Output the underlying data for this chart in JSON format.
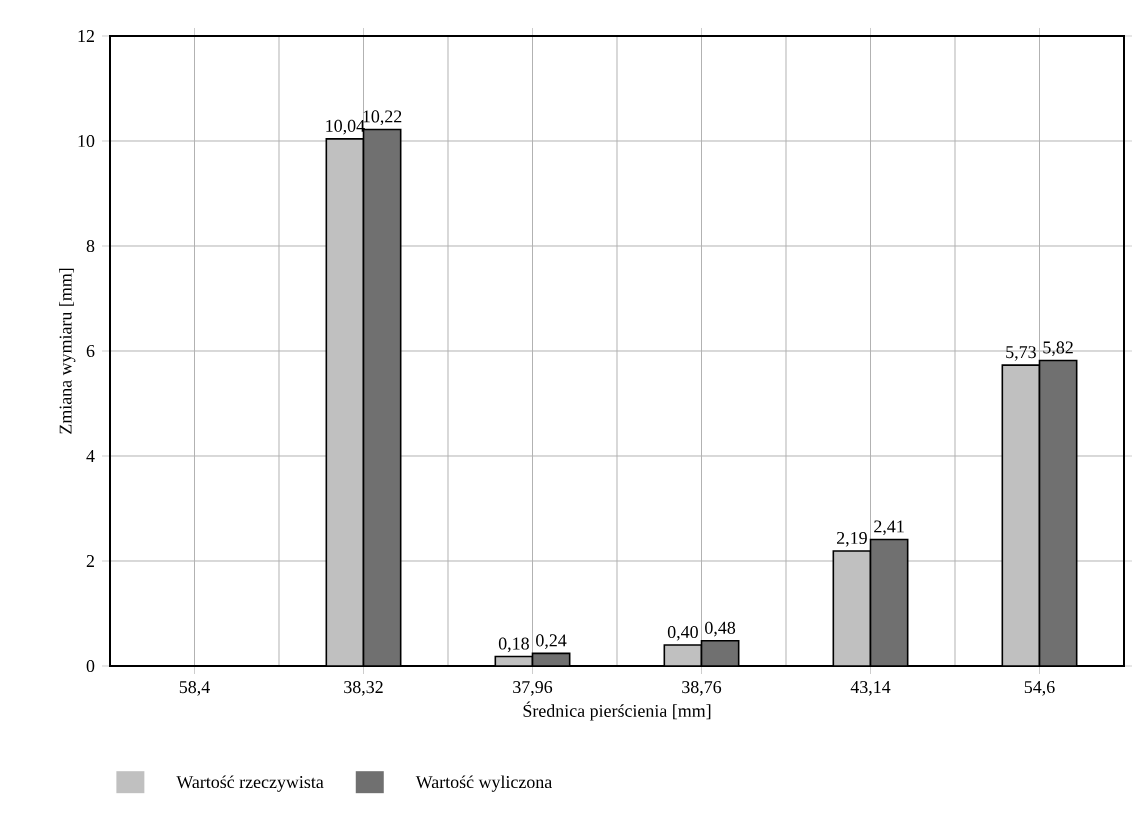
{
  "chart_data": {
    "type": "bar",
    "xlabel": "Średnica pierścienia [mm]",
    "ylabel": "Zmiana wymiaru [mm]",
    "categories": [
      "58,4",
      "38,32",
      "37,96",
      "38,76",
      "43,14",
      "54,6"
    ],
    "series": [
      {
        "name": "Wartość rzeczywista",
        "color": "#c0c0c0",
        "values": [
          null,
          10.04,
          0.18,
          0.4,
          2.19,
          5.73
        ],
        "value_labels": [
          null,
          "10,04",
          "0,18",
          "0,40",
          "2,19",
          "5,73"
        ]
      },
      {
        "name": "Wartość wyliczona",
        "color": "#707070",
        "values": [
          null,
          10.22,
          0.24,
          0.48,
          2.41,
          5.82
        ],
        "value_labels": [
          null,
          "10,22",
          "0,24",
          "0,48",
          "2,41",
          "5,82"
        ]
      }
    ],
    "ylim": [
      0,
      12
    ],
    "yticks": [
      0,
      2,
      4,
      6,
      8,
      10,
      12
    ],
    "grid": true,
    "legend": "bottom"
  }
}
